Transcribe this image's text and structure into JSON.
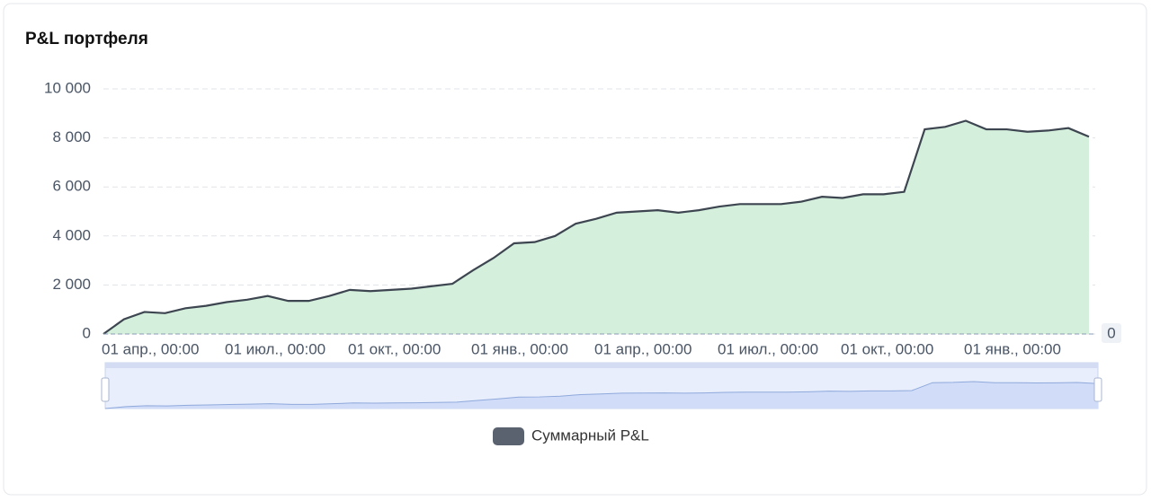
{
  "chart_data": {
    "type": "area",
    "title": "P&L портфеля",
    "categories": [
      "01 апр., 00:00",
      null,
      null,
      null,
      null,
      null,
      "01 июл., 00:00",
      null,
      null,
      null,
      null,
      null,
      "01 окт., 00:00",
      null,
      null,
      null,
      null,
      null,
      "01 янв., 00:00",
      null,
      null,
      null,
      null,
      null,
      "01 апр., 00:00",
      null,
      null,
      null,
      null,
      null,
      "01 июл., 00:00",
      null,
      null,
      null,
      null,
      null,
      "01 окт., 00:00",
      null,
      null,
      null,
      null,
      null,
      "01 янв., 00:00",
      null,
      null,
      null,
      null,
      null,
      null
    ],
    "series": [
      {
        "name": "Суммарный P&L",
        "color": "#3d4650",
        "fill": "#d5efdd",
        "values": [
          0,
          600,
          900,
          850,
          1050,
          1150,
          1300,
          1400,
          1550,
          1350,
          1350,
          1550,
          1800,
          1750,
          1800,
          1850,
          1950,
          2050,
          2600,
          3100,
          3700,
          3750,
          4000,
          4500,
          4700,
          4950,
          5000,
          5050,
          4950,
          5050,
          5200,
          5300,
          5300,
          5300,
          5400,
          5600,
          5550,
          5700,
          5700,
          5800,
          8350,
          8450,
          8700,
          8350,
          8350,
          8250,
          8300,
          8400,
          8050
        ]
      }
    ],
    "ylim": [
      0,
      10000
    ],
    "yticks": [
      0,
      {
        "value": 2000,
        "label": "2 000"
      },
      {
        "value": 4000,
        "label": "4 000"
      },
      {
        "value": 6000,
        "label": "6 000"
      },
      {
        "value": 8000,
        "label": "8 000"
      },
      {
        "value": 10000,
        "label": "10 000"
      }
    ],
    "markline": 0,
    "grid": true,
    "legend": "bottom"
  }
}
